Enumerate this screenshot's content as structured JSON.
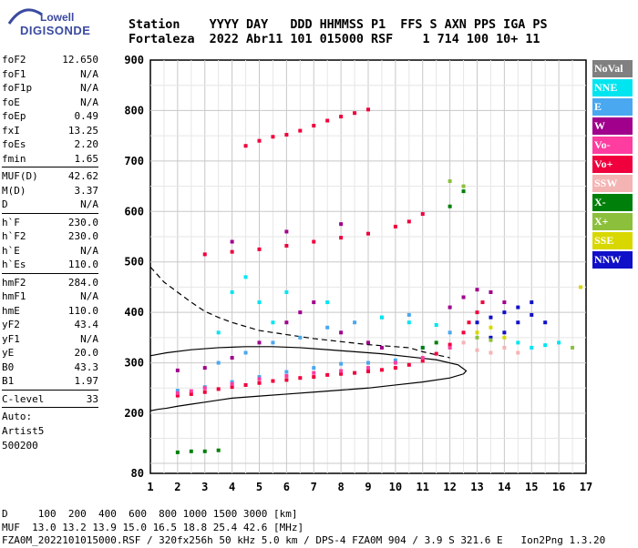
{
  "logo": {
    "line1": "Lowell",
    "line2": "DIGISONDE"
  },
  "header": {
    "line1": "Station    YYYY DAY   DDD HHMMSS P1  FFS S AXN PPS IGA PS",
    "line2": "Fortaleza  2022 Abr11 101 015000 RSF    1 714 100 10+ 11"
  },
  "params": {
    "group1": [
      {
        "k": "foF2",
        "v": "12.650"
      },
      {
        "k": "foF1",
        "v": "N/A"
      },
      {
        "k": "foF1p",
        "v": "N/A"
      },
      {
        "k": "foE",
        "v": "N/A"
      },
      {
        "k": "foEp",
        "v": "0.49"
      },
      {
        "k": "fxI",
        "v": "13.25"
      },
      {
        "k": "foEs",
        "v": "2.20"
      },
      {
        "k": "fmin",
        "v": "1.65"
      }
    ],
    "group2": [
      {
        "k": "MUF(D)",
        "v": "42.62"
      },
      {
        "k": "M(D)",
        "v": "3.37"
      },
      {
        "k": "D",
        "v": "N/A"
      }
    ],
    "group3": [
      {
        "k": "h`F",
        "v": "230.0"
      },
      {
        "k": "h`F2",
        "v": "230.0"
      },
      {
        "k": "h`E",
        "v": "N/A"
      },
      {
        "k": "h`Es",
        "v": "110.0"
      }
    ],
    "group4": [
      {
        "k": "hmF2",
        "v": "284.0"
      },
      {
        "k": "hmF1",
        "v": "N/A"
      },
      {
        "k": "hmE",
        "v": "110.0"
      },
      {
        "k": "yF2",
        "v": "43.4"
      },
      {
        "k": "yF1",
        "v": "N/A"
      },
      {
        "k": "yE",
        "v": "20.0"
      },
      {
        "k": "B0",
        "v": "43.3"
      },
      {
        "k": "B1",
        "v": "1.97"
      }
    ],
    "group5": [
      {
        "k": "C-level",
        "v": "33"
      }
    ],
    "auto": [
      "Auto:",
      "Artist5",
      "500200"
    ]
  },
  "legend": [
    {
      "label": "NoVal",
      "color": "#808080"
    },
    {
      "label": "NNE",
      "color": "#00e5f0"
    },
    {
      "label": "E",
      "color": "#4aa8f0"
    },
    {
      "label": "W",
      "color": "#a0008c"
    },
    {
      "label": "Vo-",
      "color": "#ff3ca0"
    },
    {
      "label": "Vo+",
      "color": "#f0003c"
    },
    {
      "label": "SSW",
      "color": "#f4b4b4"
    },
    {
      "label": "X-",
      "color": "#00800a"
    },
    {
      "label": "X+",
      "color": "#8cc03c"
    },
    {
      "label": "SSE",
      "color": "#d8d800"
    },
    {
      "label": "NNW",
      "color": "#1010c8"
    }
  ],
  "bottom": {
    "line1": "D     100  200  400  600  800 1000 1500 3000 [km]",
    "line2": "MUF  13.0 13.2 13.9 15.0 16.5 18.8 25.4 42.6 [MHz]",
    "line3": "FZA0M_2022101015000.RSF / 320fx256h 50 kHz 5.0 km / DPS-4 FZA0M 904 / 3.9 S 321.6 E   Ion2Png 1.3.20"
  },
  "chart_data": {
    "type": "scatter",
    "xlim": [
      1,
      17
    ],
    "ylim": [
      80,
      900
    ],
    "xticks": [
      1,
      2,
      3,
      4,
      5,
      6,
      7,
      8,
      9,
      10,
      11,
      12,
      13,
      14,
      15,
      16,
      17
    ],
    "yticks": [
      80,
      200,
      300,
      400,
      500,
      600,
      700,
      800,
      900
    ],
    "grid": true,
    "xlabel": "",
    "ylabel": "",
    "series": [
      {
        "name": "Vo+",
        "color": "#f0003c",
        "points": [
          [
            2.0,
            235
          ],
          [
            2.5,
            238
          ],
          [
            3.0,
            242
          ],
          [
            3.5,
            248
          ],
          [
            4.0,
            252
          ],
          [
            4.5,
            256
          ],
          [
            5.0,
            260
          ],
          [
            5.5,
            264
          ],
          [
            6.0,
            266
          ],
          [
            6.5,
            270
          ],
          [
            7.0,
            272
          ],
          [
            7.5,
            276
          ],
          [
            8.0,
            278
          ],
          [
            8.5,
            280
          ],
          [
            9.0,
            283
          ],
          [
            9.5,
            286
          ],
          [
            10.0,
            290
          ],
          [
            10.5,
            296
          ],
          [
            11.0,
            304
          ],
          [
            11.5,
            318
          ],
          [
            12.0,
            336
          ],
          [
            12.5,
            360
          ],
          [
            12.7,
            380
          ],
          [
            13.0,
            400
          ],
          [
            13.2,
            420
          ],
          [
            3.0,
            515
          ],
          [
            4.0,
            520
          ],
          [
            5.0,
            525
          ],
          [
            6.0,
            532
          ],
          [
            7.0,
            540
          ],
          [
            8.0,
            548
          ],
          [
            9.0,
            556
          ],
          [
            10.0,
            570
          ],
          [
            10.5,
            580
          ],
          [
            11.0,
            595
          ],
          [
            4.5,
            730
          ],
          [
            5.0,
            740
          ],
          [
            5.5,
            748
          ],
          [
            6.0,
            752
          ],
          [
            6.5,
            760
          ],
          [
            7.0,
            770
          ],
          [
            7.5,
            780
          ],
          [
            8.0,
            788
          ],
          [
            8.5,
            795
          ],
          [
            9.0,
            802
          ]
        ]
      },
      {
        "name": "E",
        "color": "#4aa8f0",
        "points": [
          [
            2.0,
            245
          ],
          [
            3.0,
            252
          ],
          [
            4.0,
            262
          ],
          [
            5.0,
            272
          ],
          [
            6.0,
            282
          ],
          [
            7.0,
            290
          ],
          [
            8.0,
            298
          ],
          [
            9.0,
            300
          ],
          [
            10.0,
            305
          ],
          [
            11.0,
            330
          ],
          [
            12.0,
            360
          ],
          [
            3.5,
            300
          ],
          [
            4.5,
            320
          ],
          [
            5.5,
            340
          ],
          [
            6.5,
            350
          ],
          [
            7.5,
            370
          ],
          [
            8.5,
            380
          ],
          [
            9.5,
            390
          ],
          [
            10.5,
            395
          ]
        ]
      },
      {
        "name": "NNE",
        "color": "#00e5f0",
        "points": [
          [
            3.5,
            360
          ],
          [
            4.0,
            440
          ],
          [
            4.5,
            470
          ],
          [
            5.0,
            420
          ],
          [
            5.5,
            380
          ],
          [
            6.0,
            440
          ],
          [
            7.5,
            420
          ],
          [
            9.5,
            390
          ],
          [
            10.5,
            380
          ],
          [
            11.5,
            375
          ],
          [
            14.5,
            340
          ],
          [
            15.0,
            330
          ],
          [
            15.5,
            335
          ],
          [
            16.0,
            340
          ]
        ]
      },
      {
        "name": "W",
        "color": "#a0008c",
        "points": [
          [
            2.0,
            285
          ],
          [
            3.0,
            290
          ],
          [
            4.0,
            310
          ],
          [
            5.0,
            340
          ],
          [
            6.0,
            380
          ],
          [
            6.5,
            400
          ],
          [
            7.0,
            420
          ],
          [
            8.0,
            360
          ],
          [
            9.0,
            340
          ],
          [
            9.5,
            330
          ],
          [
            12.0,
            410
          ],
          [
            12.5,
            430
          ],
          [
            13.0,
            445
          ],
          [
            13.5,
            440
          ],
          [
            14.0,
            420
          ],
          [
            4.0,
            540
          ],
          [
            6.0,
            560
          ],
          [
            8.0,
            575
          ]
        ]
      },
      {
        "name": "NNW",
        "color": "#1010c8",
        "points": [
          [
            13.0,
            380
          ],
          [
            13.5,
            390
          ],
          [
            14.0,
            400
          ],
          [
            14.5,
            410
          ],
          [
            15.0,
            395
          ],
          [
            15.5,
            380
          ],
          [
            15.0,
            420
          ],
          [
            14.5,
            380
          ],
          [
            14.0,
            360
          ],
          [
            13.5,
            350
          ]
        ]
      },
      {
        "name": "X-",
        "color": "#00800a",
        "points": [
          [
            2.0,
            122
          ],
          [
            2.5,
            124
          ],
          [
            3.0,
            124
          ],
          [
            3.5,
            126
          ],
          [
            11.0,
            330
          ],
          [
            11.5,
            340
          ],
          [
            12.0,
            610
          ],
          [
            12.5,
            640
          ]
        ]
      },
      {
        "name": "X+",
        "color": "#8cc03c",
        "points": [
          [
            12.0,
            660
          ],
          [
            12.5,
            650
          ],
          [
            13.0,
            350
          ],
          [
            13.5,
            345
          ],
          [
            16.5,
            330
          ]
        ]
      },
      {
        "name": "SSE",
        "color": "#d8d800",
        "points": [
          [
            13.0,
            360
          ],
          [
            13.5,
            370
          ],
          [
            14.0,
            350
          ],
          [
            16.8,
            450
          ]
        ]
      },
      {
        "name": "SSW",
        "color": "#f4b4b4",
        "points": [
          [
            12.5,
            340
          ],
          [
            13.0,
            325
          ],
          [
            13.5,
            320
          ],
          [
            14.0,
            330
          ],
          [
            14.5,
            320
          ]
        ]
      },
      {
        "name": "Vo-",
        "color": "#ff3ca0",
        "points": [
          [
            2.0,
            240
          ],
          [
            2.5,
            244
          ],
          [
            3.0,
            250
          ],
          [
            4.0,
            258
          ],
          [
            5.0,
            268
          ],
          [
            6.0,
            274
          ],
          [
            7.0,
            280
          ],
          [
            8.0,
            284
          ],
          [
            9.0,
            290
          ],
          [
            10.0,
            300
          ],
          [
            11.0,
            310
          ],
          [
            12.0,
            330
          ]
        ]
      }
    ],
    "profile": {
      "x": [
        1.0,
        1.3,
        1.6,
        2.0,
        2.5,
        3.0,
        3.5,
        4.0,
        4.5,
        5.0,
        6.0,
        7.0,
        8.0,
        9.0,
        10.0,
        11.0,
        12.0,
        12.5,
        12.6,
        12.3,
        11.5,
        10.5,
        9.5,
        8.5,
        7.5,
        6.5,
        5.5,
        4.5,
        3.5,
        2.5,
        1.6,
        1.2,
        1.0
      ],
      "y": [
        205,
        208,
        210,
        214,
        218,
        222,
        226,
        230,
        232,
        234,
        238,
        242,
        246,
        250,
        256,
        262,
        270,
        278,
        284,
        296,
        306,
        312,
        318,
        322,
        326,
        330,
        332,
        332,
        330,
        326,
        320,
        316,
        314
      ]
    },
    "profile_upper": {
      "x": [
        1.0,
        1.5,
        2.0,
        2.5,
        3.0,
        3.5,
        4.0,
        4.5,
        5.0,
        6.0,
        7.0,
        8.0,
        9.0,
        10.0,
        10.5,
        11.0,
        12.0
      ],
      "y": [
        490,
        460,
        440,
        420,
        402,
        390,
        380,
        372,
        364,
        356,
        348,
        342,
        336,
        332,
        330,
        322,
        310
      ]
    }
  }
}
